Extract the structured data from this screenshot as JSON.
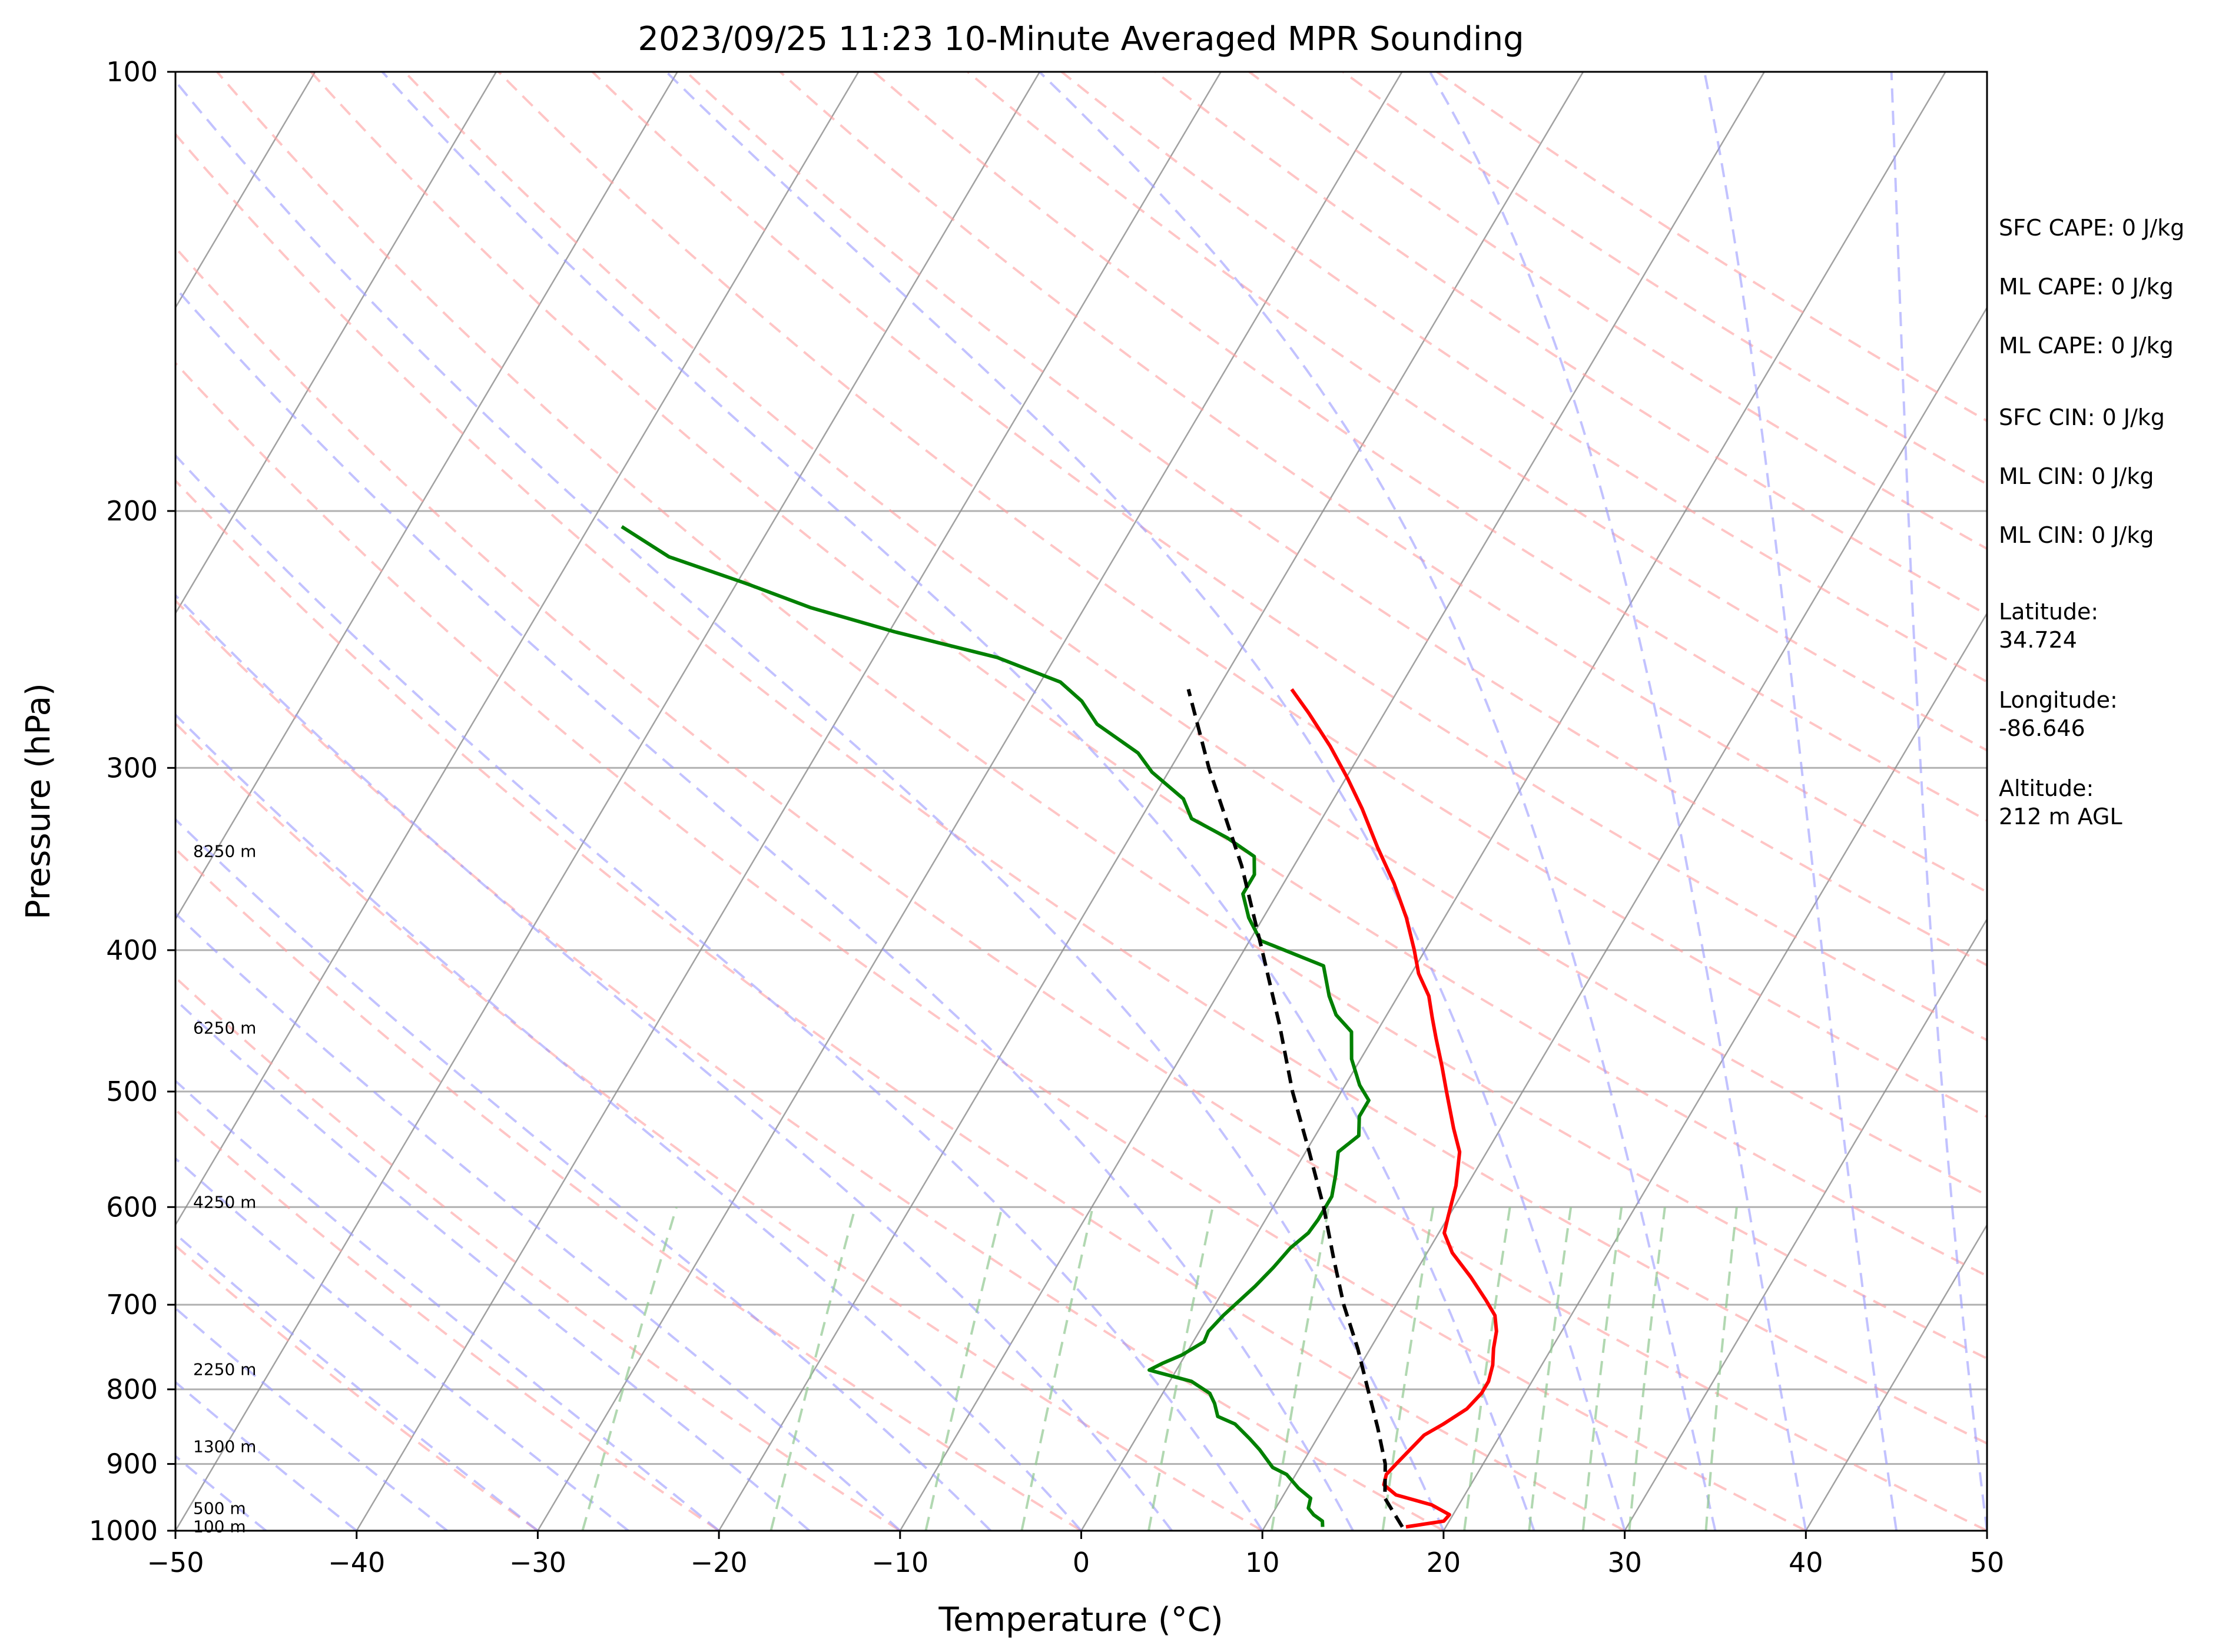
{
  "chart_data": {
    "type": "line",
    "subtype": "skew-T log-P",
    "title": "2023/09/25 11:23 10-Minute Averaged MPR Sounding",
    "xlabel": "Temperature (°C)",
    "ylabel": "Pressure (hPa)",
    "xlim": [
      -50,
      50
    ],
    "ylim": [
      1000,
      100
    ],
    "y_scale": "log",
    "x_ticks": [
      "−50",
      "−40",
      "−30",
      "−20",
      "−10",
      "0",
      "10",
      "20",
      "30",
      "40",
      "50"
    ],
    "x_tick_values": [
      -50,
      -40,
      -30,
      -20,
      -10,
      0,
      10,
      20,
      30,
      40,
      50
    ],
    "y_ticks": [
      "100",
      "200",
      "300",
      "400",
      "500",
      "600",
      "700",
      "800",
      "900",
      "1000"
    ],
    "y_tick_values": [
      100,
      200,
      300,
      400,
      500,
      600,
      700,
      800,
      900,
      1000
    ],
    "grid": true,
    "series": [
      {
        "role": "temperature",
        "color": "#ff0000",
        "style": "solid",
        "points": [
          [
            994,
            17.8
          ],
          [
            985,
            19.7
          ],
          [
            975,
            19.8
          ],
          [
            960,
            18.5
          ],
          [
            945,
            16.2
          ],
          [
            930,
            15.2
          ],
          [
            915,
            15.0
          ],
          [
            900,
            15.2
          ],
          [
            880,
            15.5
          ],
          [
            860,
            15.8
          ],
          [
            845,
            16.5
          ],
          [
            825,
            17.3
          ],
          [
            805,
            17.6
          ],
          [
            790,
            17.6
          ],
          [
            770,
            17.3
          ],
          [
            750,
            16.8
          ],
          [
            730,
            16.4
          ],
          [
            712,
            15.8
          ],
          [
            695,
            14.8
          ],
          [
            670,
            13.2
          ],
          [
            645,
            11.4
          ],
          [
            625,
            10.3
          ],
          [
            610,
            10.0
          ],
          [
            580,
            9.4
          ],
          [
            550,
            8.5
          ],
          [
            530,
            7.4
          ],
          [
            500,
            5.8
          ],
          [
            480,
            4.7
          ],
          [
            460,
            3.5
          ],
          [
            445,
            2.6
          ],
          [
            430,
            1.7
          ],
          [
            415,
            0.4
          ],
          [
            400,
            -0.6
          ],
          [
            380,
            -2.1
          ],
          [
            360,
            -3.9
          ],
          [
            340,
            -6.0
          ],
          [
            320,
            -8.1
          ],
          [
            305,
            -9.9
          ],
          [
            290,
            -11.9
          ],
          [
            275,
            -14.2
          ],
          [
            265,
            -15.9
          ]
        ]
      },
      {
        "role": "dewpoint",
        "color": "#008000",
        "style": "solid",
        "points": [
          [
            994,
            13.2
          ],
          [
            985,
            13.0
          ],
          [
            975,
            12.3
          ],
          [
            965,
            11.8
          ],
          [
            950,
            11.6
          ],
          [
            935,
            10.6
          ],
          [
            915,
            9.5
          ],
          [
            905,
            8.5
          ],
          [
            880,
            7.2
          ],
          [
            865,
            6.3
          ],
          [
            845,
            5.0
          ],
          [
            835,
            3.8
          ],
          [
            818,
            3.2
          ],
          [
            805,
            2.6
          ],
          [
            790,
            1.2
          ],
          [
            776,
            -1.5
          ],
          [
            768,
            -1.0
          ],
          [
            758,
            -0.2
          ],
          [
            742,
            0.6
          ],
          [
            730,
            0.5
          ],
          [
            712,
            0.8
          ],
          [
            680,
            1.6
          ],
          [
            660,
            2.0
          ],
          [
            640,
            2.3
          ],
          [
            625,
            2.8
          ],
          [
            612,
            2.9
          ],
          [
            590,
            2.9
          ],
          [
            570,
            2.4
          ],
          [
            550,
            1.8
          ],
          [
            536,
            2.4
          ],
          [
            520,
            1.8
          ],
          [
            507,
            1.8
          ],
          [
            495,
            0.8
          ],
          [
            475,
            -0.5
          ],
          [
            455,
            -1.4
          ],
          [
            443,
            -2.8
          ],
          [
            430,
            -3.8
          ],
          [
            410,
            -5.1
          ],
          [
            394,
            -9.4
          ],
          [
            380,
            -10.8
          ],
          [
            366,
            -11.9
          ],
          [
            355,
            -11.9
          ],
          [
            345,
            -12.5
          ],
          [
            335,
            -14.6
          ],
          [
            325,
            -17.2
          ],
          [
            315,
            -18.3
          ],
          [
            302,
            -20.9
          ],
          [
            293,
            -22.3
          ],
          [
            280,
            -25.5
          ],
          [
            270,
            -27.1
          ],
          [
            262,
            -28.9
          ],
          [
            252,
            -33.2
          ],
          [
            242,
            -39.7
          ],
          [
            233,
            -45.1
          ],
          [
            224,
            -49.6
          ],
          [
            215,
            -54.6
          ],
          [
            205,
            -58.2
          ]
        ]
      },
      {
        "role": "parcel",
        "color": "#000000",
        "style": "dashed",
        "points": [
          [
            994,
            17.6
          ],
          [
            950,
            15.7
          ],
          [
            900,
            14.6
          ],
          [
            850,
            13.0
          ],
          [
            800,
            11.2
          ],
          [
            750,
            9.3
          ],
          [
            700,
            7.1
          ],
          [
            650,
            5.0
          ],
          [
            600,
            2.8
          ],
          [
            550,
            0.2
          ],
          [
            500,
            -2.7
          ],
          [
            450,
            -5.6
          ],
          [
            400,
            -9.0
          ],
          [
            350,
            -12.9
          ],
          [
            300,
            -17.9
          ],
          [
            265,
            -21.6
          ]
        ]
      }
    ],
    "side_text": [
      "SFC CAPE: 0 J/kg",
      "ML CAPE: 0 J/kg",
      "ML CAPE: 0 J/kg",
      "SFC CIN: 0 J/kg",
      "ML CIN: 0 J/kg",
      "ML CIN: 0 J/kg",
      "Latitude:\n34.724",
      "Longitude:\n-86.646",
      "Altitude:\n212 m AGL"
    ],
    "height_labels": [
      {
        "text": "8250 m",
        "p": 342
      },
      {
        "text": "6250 m",
        "p": 452
      },
      {
        "text": "4250 m",
        "p": 595
      },
      {
        "text": "2250 m",
        "p": 775
      },
      {
        "text": "1300 m",
        "p": 875
      },
      {
        "text": "500 m",
        "p": 965
      },
      {
        "text": "100 m",
        "p": 993
      }
    ],
    "reference_lines": {
      "isotherms_color": "#8a8a8a",
      "dry_adiabats_color": "#ff9e9e",
      "moist_adiabats_color": "#9a9aff",
      "mixing_ratio_color": "#90c890"
    }
  }
}
